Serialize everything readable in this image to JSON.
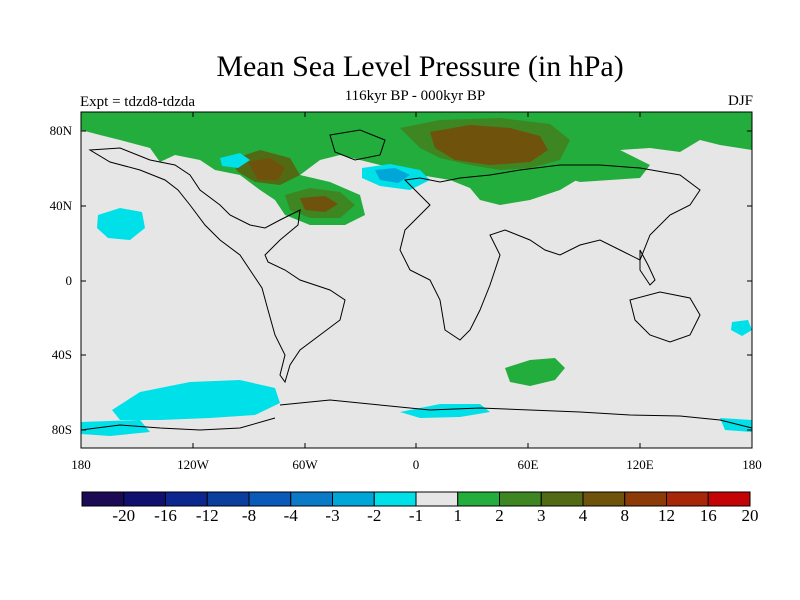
{
  "title": "Mean Sea Level Pressure (in hPa)",
  "subtitle": "116kyr BP - 000kyr BP",
  "experiment_label": "Expt = tdzd8-tdzda",
  "season_label": "DJF",
  "lat_labels": [
    "80N",
    "40N",
    "0",
    "40S",
    "80S"
  ],
  "lon_labels": [
    "180",
    "120W",
    "60W",
    "0",
    "60E",
    "120E",
    "180"
  ],
  "colorbar": {
    "colors": [
      "#1c0a55",
      "#101070",
      "#0c2790",
      "#0a3fa0",
      "#0a5aba",
      "#0a7ac8",
      "#00a6d8",
      "#00e0e8",
      "#e6e6e6",
      "#23ad3c",
      "#3d8622",
      "#536a14",
      "#6f520c",
      "#8c3a08",
      "#a8260a",
      "#c40404"
    ],
    "labels": [
      "-20",
      "-16",
      "-12",
      "-8",
      "-4",
      "-3",
      "-2",
      "-1",
      "1",
      "2",
      "3",
      "4",
      "8",
      "12",
      "16",
      "20"
    ]
  },
  "colors": {
    "background_field": "#e6e6e6",
    "green": "#23ad3c",
    "dark_green": "#3d8622",
    "olive": "#536a14",
    "brown": "#6f520c",
    "cyan": "#00e0e8",
    "light_blue": "#00a6d8"
  }
}
